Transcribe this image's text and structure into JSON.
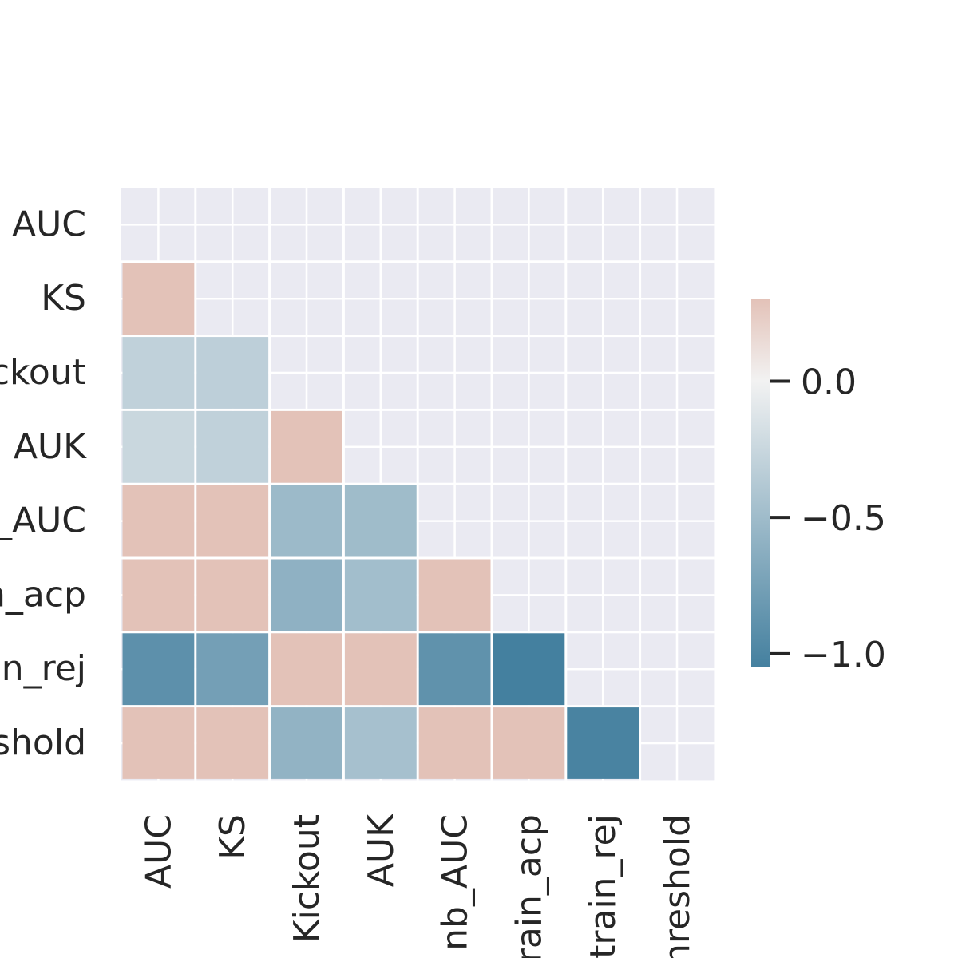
{
  "chart_data": {
    "type": "heatmap",
    "mask": "upper-triangle-including-diagonal",
    "row_labels": [
      "AUC",
      "KS",
      "ckout",
      "AUK",
      "_AUC",
      "n_acp",
      "n_rej",
      "shold"
    ],
    "col_labels": [
      "AUC",
      "KS",
      "Kickout",
      "AUK",
      "nb_AUC",
      "rain_acp",
      "train_rej",
      "hreshold"
    ],
    "values": [
      [
        null,
        null,
        null,
        null,
        null,
        null,
        null,
        null
      ],
      [
        0.3,
        null,
        null,
        null,
        null,
        null,
        null,
        null
      ],
      [
        -0.3,
        -0.32,
        null,
        null,
        null,
        null,
        null,
        null
      ],
      [
        -0.25,
        -0.3,
        0.3,
        null,
        null,
        null,
        null,
        null
      ],
      [
        0.3,
        0.3,
        -0.52,
        -0.5,
        null,
        null,
        null,
        null
      ],
      [
        0.3,
        0.3,
        -0.6,
        -0.48,
        0.3,
        null,
        null,
        null
      ],
      [
        -0.9,
        -0.76,
        0.3,
        0.3,
        -0.88,
        -1.05,
        null,
        null
      ],
      [
        0.3,
        0.3,
        -0.58,
        -0.46,
        0.3,
        0.3,
        -1.02,
        null
      ]
    ],
    "colorbar": {
      "ticks": [
        "0.0",
        "−0.5",
        "−1.0"
      ],
      "tick_values": [
        0.0,
        -0.5,
        -1.0
      ],
      "vmin": -1.05,
      "vmax": 0.3
    },
    "colors": {
      "background": "#EAEAF2",
      "grid_line": "#FFFFFF",
      "low": "#44809F",
      "mid": "#F2F2F2",
      "high": "#E3C2B8"
    },
    "grid": true,
    "legend": "right"
  }
}
